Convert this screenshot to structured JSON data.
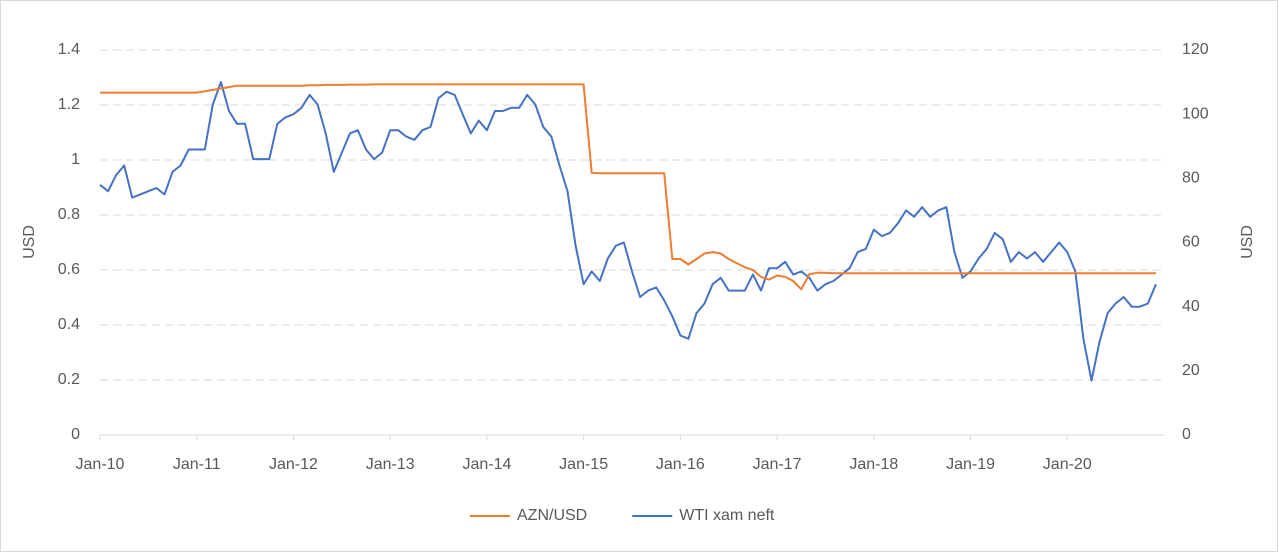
{
  "chart_data": {
    "type": "line",
    "x": [
      "2010-01",
      "2010-02",
      "2010-03",
      "2010-04",
      "2010-05",
      "2010-06",
      "2010-07",
      "2010-08",
      "2010-09",
      "2010-10",
      "2010-11",
      "2010-12",
      "2011-01",
      "2011-02",
      "2011-03",
      "2011-04",
      "2011-05",
      "2011-06",
      "2011-07",
      "2011-08",
      "2011-09",
      "2011-10",
      "2011-11",
      "2011-12",
      "2012-01",
      "2012-02",
      "2012-03",
      "2012-04",
      "2012-05",
      "2012-06",
      "2012-07",
      "2012-08",
      "2012-09",
      "2012-10",
      "2012-11",
      "2012-12",
      "2013-01",
      "2013-02",
      "2013-03",
      "2013-04",
      "2013-05",
      "2013-06",
      "2013-07",
      "2013-08",
      "2013-09",
      "2013-10",
      "2013-11",
      "2013-12",
      "2014-01",
      "2014-02",
      "2014-03",
      "2014-04",
      "2014-05",
      "2014-06",
      "2014-07",
      "2014-08",
      "2014-09",
      "2014-10",
      "2014-11",
      "2014-12",
      "2015-01",
      "2015-02",
      "2015-03",
      "2015-04",
      "2015-05",
      "2015-06",
      "2015-07",
      "2015-08",
      "2015-09",
      "2015-10",
      "2015-11",
      "2015-12",
      "2016-01",
      "2016-02",
      "2016-03",
      "2016-04",
      "2016-05",
      "2016-06",
      "2016-07",
      "2016-08",
      "2016-09",
      "2016-10",
      "2016-11",
      "2016-12",
      "2017-01",
      "2017-02",
      "2017-03",
      "2017-04",
      "2017-05",
      "2017-06",
      "2017-07",
      "2017-08",
      "2017-09",
      "2017-10",
      "2017-11",
      "2017-12",
      "2018-01",
      "2018-02",
      "2018-03",
      "2018-04",
      "2018-05",
      "2018-06",
      "2018-07",
      "2018-08",
      "2018-09",
      "2018-10",
      "2018-11",
      "2018-12",
      "2019-01",
      "2019-02",
      "2019-03",
      "2019-04",
      "2019-05",
      "2019-06",
      "2019-07",
      "2019-08",
      "2019-09",
      "2019-10",
      "2019-11",
      "2019-12",
      "2020-01",
      "2020-02",
      "2020-03",
      "2020-04",
      "2020-05",
      "2020-06",
      "2020-07",
      "2020-08",
      "2020-09",
      "2020-10",
      "2020-11",
      "2020-12"
    ],
    "series": [
      {
        "name": "AZN/USD",
        "color": "#ed7d31",
        "values": [
          1.245,
          1.245,
          1.245,
          1.245,
          1.245,
          1.245,
          1.245,
          1.245,
          1.245,
          1.245,
          1.245,
          1.245,
          1.245,
          1.25,
          1.255,
          1.26,
          1.265,
          1.27,
          1.27,
          1.27,
          1.27,
          1.27,
          1.27,
          1.27,
          1.27,
          1.27,
          1.272,
          1.272,
          1.273,
          1.273,
          1.273,
          1.274,
          1.274,
          1.274,
          1.275,
          1.275,
          1.275,
          1.275,
          1.275,
          1.275,
          1.275,
          1.275,
          1.275,
          1.275,
          1.275,
          1.275,
          1.275,
          1.275,
          1.275,
          1.275,
          1.275,
          1.275,
          1.275,
          1.275,
          1.275,
          1.275,
          1.275,
          1.275,
          1.275,
          1.275,
          1.275,
          0.953,
          0.952,
          0.952,
          0.952,
          0.952,
          0.952,
          0.952,
          0.952,
          0.952,
          0.952,
          0.64,
          0.64,
          0.62,
          0.64,
          0.66,
          0.665,
          0.66,
          0.64,
          0.625,
          0.61,
          0.6,
          0.575,
          0.565,
          0.58,
          0.575,
          0.56,
          0.53,
          0.585,
          0.59,
          0.59,
          0.588,
          0.588,
          0.588,
          0.588,
          0.588,
          0.588,
          0.588,
          0.588,
          0.588,
          0.588,
          0.588,
          0.588,
          0.588,
          0.588,
          0.588,
          0.588,
          0.588,
          0.588,
          0.588,
          0.588,
          0.588,
          0.588,
          0.588,
          0.588,
          0.588,
          0.588,
          0.588,
          0.588,
          0.588,
          0.588,
          0.588,
          0.588,
          0.588,
          0.588,
          0.588,
          0.588,
          0.588,
          0.588,
          0.588,
          0.588,
          0.588
        ]
      },
      {
        "name": "WTI xam neft",
        "color": "#4472c4",
        "axis": "y2",
        "values": [
          78,
          76,
          81,
          84,
          74,
          75,
          76,
          77,
          75,
          82,
          84,
          89,
          89,
          89,
          103,
          110,
          101,
          97,
          97,
          86,
          86,
          86,
          97,
          99,
          100,
          102,
          106,
          103,
          94,
          82,
          88,
          94,
          95,
          89,
          86,
          88,
          95,
          95,
          93,
          92,
          95,
          96,
          105,
          107,
          106,
          100,
          94,
          98,
          95,
          101,
          101,
          102,
          102,
          106,
          103,
          96,
          93,
          84,
          76,
          59,
          47,
          51,
          48,
          55,
          59,
          60,
          51,
          43,
          45,
          46,
          42,
          37,
          31,
          30,
          38,
          41,
          47,
          49,
          45,
          45,
          45,
          50,
          45,
          52,
          52,
          54,
          50,
          51,
          49,
          45,
          47,
          48,
          50,
          52,
          57,
          58,
          64,
          62,
          63,
          66,
          70,
          68,
          71,
          68,
          70,
          71,
          57,
          49,
          51,
          55,
          58,
          63,
          61,
          54,
          57,
          55,
          57,
          54,
          57,
          60,
          57,
          51,
          30,
          17,
          29,
          38,
          41,
          43,
          40,
          40,
          41,
          47
        ]
      }
    ],
    "xlim": [
      "2010-01",
      "2021-01"
    ],
    "xticks": [
      {
        "value": "2010-01",
        "label": "Jan-10"
      },
      {
        "value": "2011-01",
        "label": "Jan-11"
      },
      {
        "value": "2012-01",
        "label": "Jan-12"
      },
      {
        "value": "2013-01",
        "label": "Jan-13"
      },
      {
        "value": "2014-01",
        "label": "Jan-14"
      },
      {
        "value": "2015-01",
        "label": "Jan-15"
      },
      {
        "value": "2016-01",
        "label": "Jan-16"
      },
      {
        "value": "2017-01",
        "label": "Jan-17"
      },
      {
        "value": "2018-01",
        "label": "Jan-18"
      },
      {
        "value": "2019-01",
        "label": "Jan-19"
      },
      {
        "value": "2020-01",
        "label": "Jan-20"
      }
    ],
    "ylim": [
      0,
      1.4
    ],
    "yticks": [
      0,
      0.2,
      0.4,
      0.6,
      0.8,
      1,
      1.2,
      1.4
    ],
    "y2lim": [
      0,
      120
    ],
    "y2ticks": [
      0,
      20,
      40,
      60,
      80,
      100,
      120
    ],
    "ylabel": "USD",
    "y2label": "USD",
    "grid": true,
    "legend": "bottom"
  }
}
